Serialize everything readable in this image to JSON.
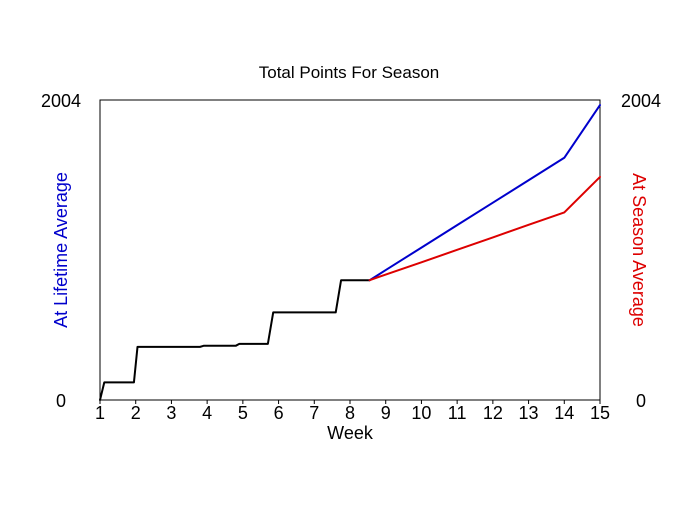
{
  "chart_data": {
    "type": "line",
    "title": "Total Points For Season",
    "xlabel": "Week",
    "ylabel_left": "At Lifetime Average",
    "ylabel_right": "At Season Average",
    "xlim": [
      1,
      15
    ],
    "ylim": [
      0,
      2004
    ],
    "x_ticks": [
      1,
      2,
      3,
      4,
      5,
      6,
      7,
      8,
      9,
      10,
      11,
      12,
      13,
      14,
      15
    ],
    "y_tick_labels": [
      "0",
      "2004"
    ],
    "grid": false,
    "legend": "none",
    "colors": {
      "actual": "#000000",
      "lifetime": "#0000cc",
      "season": "#dd0000",
      "axis": "#000000",
      "left_label": "#0000cc",
      "right_label": "#dd0000"
    },
    "series": [
      {
        "key": "actual",
        "points": [
          [
            1.0,
            0
          ],
          [
            1.12,
            118
          ],
          [
            1.95,
            118
          ],
          [
            2.05,
            355
          ],
          [
            3.8,
            355
          ],
          [
            3.9,
            362
          ],
          [
            4.8,
            362
          ],
          [
            4.9,
            375
          ],
          [
            5.7,
            375
          ],
          [
            5.85,
            585
          ],
          [
            7.6,
            585
          ],
          [
            7.75,
            800
          ],
          [
            8.55,
            800
          ]
        ]
      },
      {
        "key": "lifetime",
        "points": [
          [
            8.55,
            800
          ],
          [
            9,
            868
          ],
          [
            10,
            1018
          ],
          [
            11,
            1168
          ],
          [
            12,
            1318
          ],
          [
            13,
            1468
          ],
          [
            14,
            1618
          ],
          [
            15,
            1970
          ]
        ]
      },
      {
        "key": "season",
        "points": [
          [
            8.55,
            800
          ],
          [
            9,
            838
          ],
          [
            10,
            920
          ],
          [
            11,
            1003
          ],
          [
            12,
            1086
          ],
          [
            13,
            1170
          ],
          [
            14,
            1253
          ],
          [
            15,
            1490
          ]
        ]
      }
    ]
  }
}
